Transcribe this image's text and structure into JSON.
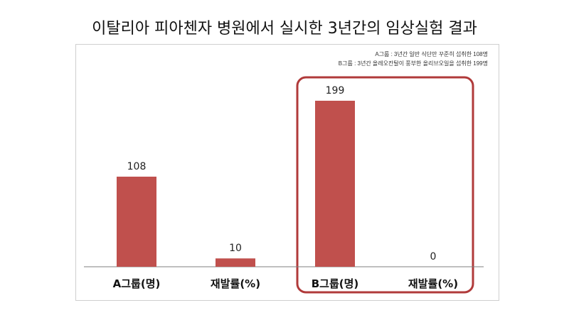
{
  "title": "이탈리아 피아첸자 병원에서 실시한 3년간의 임상실험 결과",
  "legend": {
    "a": "A그룹 : 3년간 일반 식단만 꾸준히 섭취한 108명",
    "b": "B그룹 : 3년간 올레오칸탈이 풍부한 올리브오일을 섭취한 199명"
  },
  "colors": {
    "bar": "#c0504d",
    "highlight": "#b03a3a",
    "axis": "#7f7f7f"
  },
  "chart_data": {
    "type": "bar",
    "categories": [
      "A그룹(명)",
      "재발률(%)",
      "B그룹(명)",
      "재발률(%)"
    ],
    "values": [
      108,
      10,
      199,
      0
    ],
    "ylim": [
      0,
      199
    ],
    "grid": false,
    "data_labels": [
      "108",
      "10",
      "199",
      "0"
    ],
    "highlighted_group": [
      "B그룹(명)",
      "재발률(%)"
    ]
  }
}
